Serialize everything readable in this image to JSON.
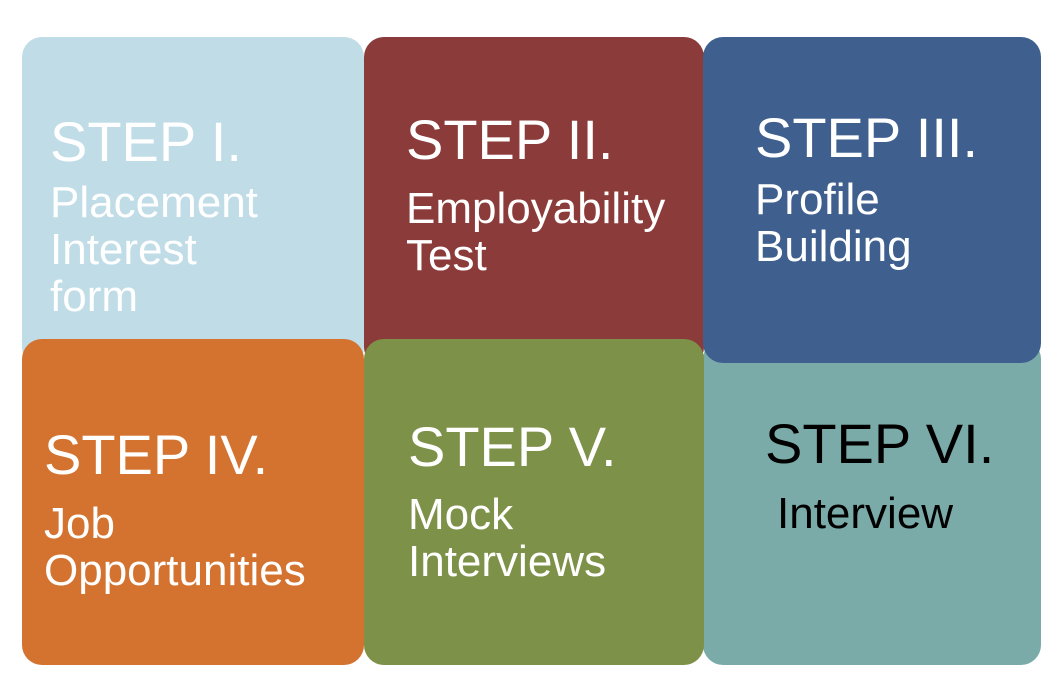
{
  "steps": [
    {
      "step": "STEP I.",
      "lines": [
        "Placement",
        "Interest",
        "form"
      ],
      "color": "#c0dde7",
      "text_color": "#ffffff"
    },
    {
      "step": "STEP II.",
      "lines": [
        "Employability",
        "Test"
      ],
      "color": "#8b3c3a",
      "text_color": "#ffffff"
    },
    {
      "step": "STEP III.",
      "lines": [
        "Profile",
        "Building"
      ],
      "color": "#3f5f8e",
      "text_color": "#ffffff"
    },
    {
      "step": "STEP IV.",
      "lines": [
        "Job",
        "Opportunities"
      ],
      "color": "#d4732f",
      "text_color": "#ffffff"
    },
    {
      "step": "STEP V.",
      "lines": [
        "Mock",
        "Interviews"
      ],
      "color": "#7e9149",
      "text_color": "#ffffff"
    },
    {
      "step": "STEP VI.",
      "lines": [
        "Interview"
      ],
      "color": "#7aaba8",
      "text_color": "#000000"
    }
  ]
}
